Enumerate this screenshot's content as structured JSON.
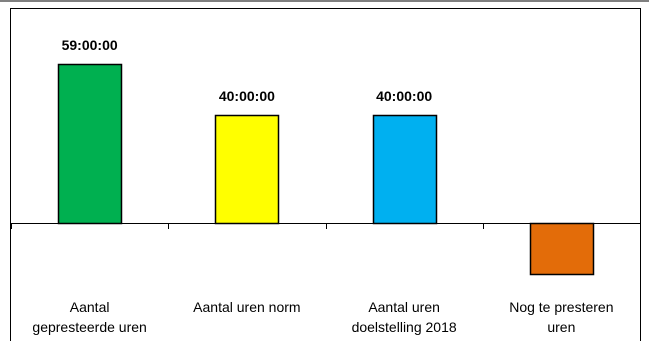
{
  "chart_data": {
    "type": "bar",
    "categories": [
      [
        "Aantal",
        "gepresteerde uren"
      ],
      [
        "Aantal uren norm"
      ],
      [
        "Aantal uren",
        "doelstelling 2018"
      ],
      [
        "Nog te presteren",
        "uren"
      ]
    ],
    "values": [
      59,
      40,
      40,
      -19
    ],
    "data_labels": [
      "59:00:00",
      "40:00:00",
      "40:00:00",
      ""
    ],
    "colors": [
      "#00b050",
      "#ffff00",
      "#00b0f0",
      "#e36c09"
    ],
    "value_unit": "hours",
    "ylim": [
      -60,
      59
    ],
    "axis_visible": false,
    "grid": false,
    "legend": "none"
  }
}
